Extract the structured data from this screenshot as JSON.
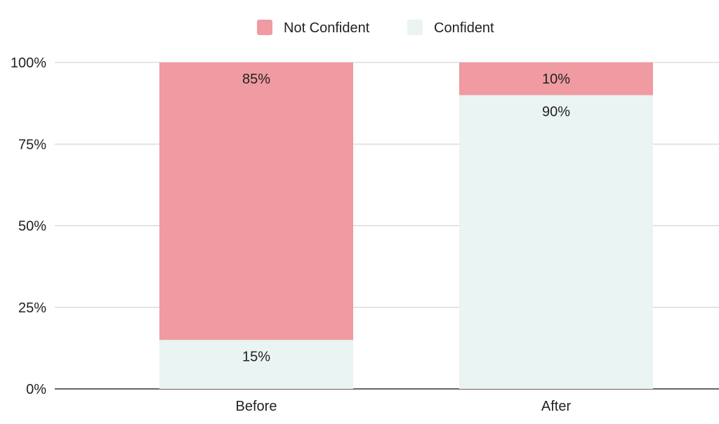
{
  "chart_data": {
    "type": "bar",
    "stacked": true,
    "categories": [
      "Before",
      "After"
    ],
    "series": [
      {
        "name": "Confident",
        "values": [
          15,
          90
        ],
        "color": "#eaf4f2",
        "labels": [
          "15%",
          "90%"
        ]
      },
      {
        "name": "Not Confident",
        "values": [
          85,
          10
        ],
        "color": "#f09aa1",
        "labels": [
          "85%",
          "10%"
        ]
      }
    ],
    "legend_order": [
      "Not Confident",
      "Confident"
    ],
    "legend_position": "top-center",
    "ylim": [
      0,
      100
    ],
    "yticks": [
      0,
      25,
      50,
      75,
      100
    ],
    "ytick_labels": [
      "0%",
      "25%",
      "50%",
      "75%",
      "100%"
    ],
    "grid": true
  }
}
